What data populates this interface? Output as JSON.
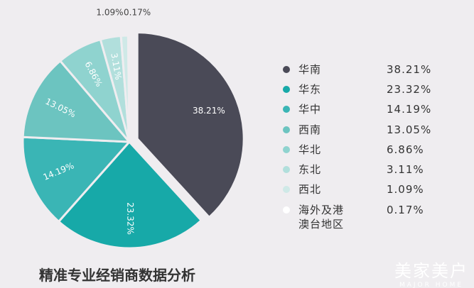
{
  "chart_data": {
    "type": "pie",
    "title": "精准专业经销商数据分析",
    "categories": [
      "华南",
      "华东",
      "华中",
      "西南",
      "华北",
      "东北",
      "西北",
      "海外及港澳台地区"
    ],
    "values": [
      38.21,
      23.32,
      14.19,
      13.05,
      6.86,
      3.11,
      1.09,
      0.17
    ],
    "value_labels": [
      "38.21%",
      "23.32%",
      "14.19%",
      "13.05%",
      "6.86%",
      "3.11%",
      "1.09%",
      "0.17%"
    ],
    "colors": [
      "#4a4a57",
      "#17a9a8",
      "#3ab5b5",
      "#6cc4c0",
      "#8fd3cf",
      "#b1dfdc",
      "#cfe9e7",
      "#ffffff"
    ],
    "legend": "right"
  },
  "watermark": {
    "title": "美家美户",
    "subtitle": "MAJOR HOME"
  }
}
